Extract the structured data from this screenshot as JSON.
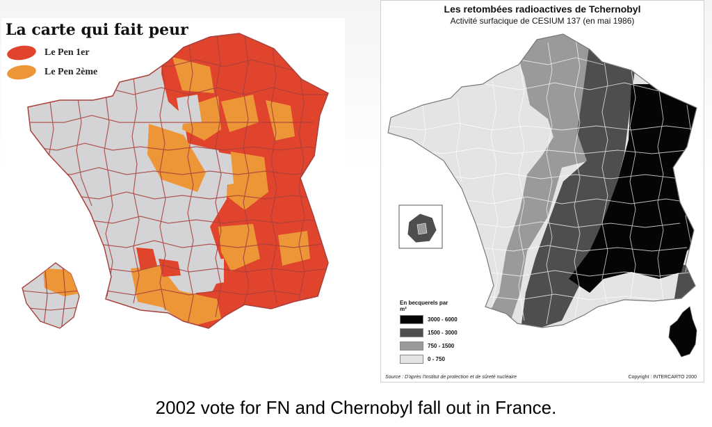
{
  "left_map": {
    "title": "La carte qui fait peur",
    "legend": [
      {
        "label": "Le Pen 1er",
        "color": "#e0442c"
      },
      {
        "label": "Le Pen 2ème",
        "color": "#ec9638"
      }
    ],
    "other_color": "#d4d4d6",
    "border_color": "#a8403c"
  },
  "right_map": {
    "title": "Les retombées radioactives de Tchernobyl",
    "subtitle": "Activité surfacique de CESIUM 137 (en mai 1986)",
    "legend_title": "En becquerels par m²",
    "legend": [
      {
        "label": "3000 - 6000",
        "color": "#050505"
      },
      {
        "label": "1500 - 3000",
        "color": "#4e4e4e"
      },
      {
        "label": "750 - 1500",
        "color": "#9a9a9a"
      },
      {
        "label": "0 - 750",
        "color": "#e4e4e4"
      }
    ],
    "source": "Source : D'après l'Institut de protection et de sûreté nucléaire",
    "copyright": "Copyright : INTERCARTO 2000"
  },
  "caption": "2002 vote for FN and Chernobyl fall out in France."
}
